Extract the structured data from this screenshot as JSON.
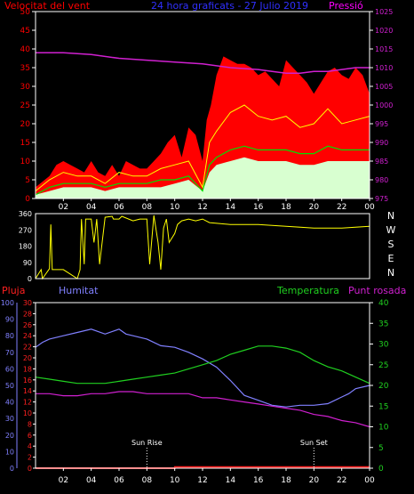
{
  "colors": {
    "background": "#000000",
    "frame": "#ffffff",
    "wind_speed": "#ff0000",
    "wind_avg": "#00e000",
    "wind_gust_fill": "#d8ffd0",
    "pressure": "#d020d0",
    "wind_dir": "#ffff00",
    "rain": "#ff2020",
    "humidity": "#8080ff",
    "temperature": "#20d020",
    "dew_point": "#d020d0",
    "tick_text": "#ffffff",
    "marker_text": "#ffffff"
  },
  "chart_data": [
    {
      "id": "wind",
      "type": "line",
      "title": "24 hora graficats - 27 Julio 2019",
      "ylabel_left": "Velocitat del vent",
      "ylabel_right": "Pressió",
      "ylim_left": [
        0,
        50
      ],
      "ylim_right": [
        975,
        1025
      ],
      "yticks_left": [
        "0",
        "5",
        "10",
        "15",
        "20",
        "25",
        "30",
        "35",
        "40",
        "45",
        "50"
      ],
      "yticks_right": [
        "975",
        "980",
        "985",
        "990",
        "995",
        "1000",
        "1005",
        "1010",
        "1015",
        "1020",
        "1025"
      ],
      "xticks": [
        "02",
        "04",
        "06",
        "08",
        "10",
        "12",
        "14",
        "16",
        "18",
        "20",
        "22",
        "00"
      ],
      "xlim_hours": [
        0,
        24
      ],
      "series": [
        {
          "role": "gust_envelope",
          "color": "#ff0000",
          "x": [
            0,
            1,
            1.5,
            2,
            2.5,
            3,
            3.5,
            4,
            4.5,
            5,
            5.5,
            6,
            6.5,
            7,
            7.5,
            8,
            8.5,
            9,
            9.5,
            10,
            10.5,
            11,
            11.5,
            12,
            12.3,
            12.6,
            13,
            13.5,
            14,
            14.5,
            15,
            15.5,
            16,
            16.5,
            17,
            17.5,
            18,
            18.5,
            19,
            19.5,
            20,
            20.5,
            21,
            21.5,
            22,
            22.5,
            23,
            23.5,
            24
          ],
          "values": [
            3,
            6,
            9,
            10,
            9,
            8,
            7,
            10,
            7,
            6,
            9,
            6,
            10,
            9,
            8,
            8,
            10,
            12,
            15,
            17,
            11,
            19,
            17,
            10,
            21,
            25,
            33,
            38,
            37,
            36,
            36,
            35,
            33,
            34,
            32,
            30,
            37,
            35,
            33,
            31,
            28,
            31,
            34,
            35,
            33,
            32,
            35,
            33,
            28
          ]
        },
        {
          "role": "wind_speed",
          "color": "#ff0000",
          "x": [
            0,
            1,
            2,
            3,
            4,
            5,
            6,
            7,
            8,
            9,
            10,
            11,
            12,
            12.5,
            13,
            14,
            15,
            16,
            17,
            18,
            19,
            20,
            21,
            22,
            23,
            24
          ],
          "values": [
            2,
            5,
            7,
            6,
            6,
            4,
            7,
            6,
            6,
            8,
            9,
            10,
            3,
            15,
            18,
            23,
            25,
            22,
            21,
            22,
            19,
            20,
            24,
            20,
            21,
            22
          ]
        },
        {
          "role": "wind_avg",
          "name": "",
          "color": "#00e000",
          "x": [
            0,
            1,
            2,
            3,
            4,
            5,
            6,
            7,
            8,
            9,
            10,
            11,
            12,
            12.5,
            13,
            14,
            15,
            16,
            17,
            18,
            19,
            20,
            21,
            22,
            23,
            24
          ],
          "values": [
            1,
            3,
            4,
            4,
            4,
            3,
            4,
            4,
            4,
            5,
            5,
            6,
            2,
            9,
            11,
            13,
            14,
            13,
            13,
            13,
            12,
            12,
            14,
            13,
            13,
            13
          ]
        },
        {
          "role": "gust_fill",
          "color": "#d8ffd0",
          "x": [
            0,
            1,
            2,
            3,
            4,
            5,
            6,
            7,
            8,
            9,
            10,
            11,
            12,
            12.5,
            13,
            14,
            15,
            16,
            17,
            18,
            19,
            20,
            21,
            22,
            23,
            24
          ],
          "values": [
            1,
            2,
            3,
            3,
            3,
            2,
            3,
            3,
            3,
            3,
            4,
            5,
            2,
            7,
            9,
            10,
            11,
            10,
            10,
            10,
            9,
            9,
            10,
            10,
            10,
            10
          ]
        },
        {
          "role": "pressure",
          "axis": "right",
          "color": "#d020d0",
          "x": [
            0,
            2,
            4,
            6,
            8,
            10,
            12,
            14,
            16,
            17,
            18,
            19,
            20,
            21,
            22,
            23,
            24
          ],
          "values": [
            1014,
            1014,
            1013.5,
            1012.5,
            1012,
            1011.5,
            1011,
            1010,
            1009.5,
            1009,
            1008.5,
            1008.5,
            1009,
            1009,
            1009.5,
            1010,
            1010
          ]
        }
      ]
    },
    {
      "id": "direction",
      "type": "line",
      "ylim": [
        0,
        360
      ],
      "yticks": [
        "0",
        "90",
        "180",
        "270",
        "360"
      ],
      "direction_labels": [
        "N",
        "W",
        "S",
        "E",
        "N"
      ],
      "series": [
        {
          "role": "wind_dir",
          "color": "#ffff00",
          "x": [
            0,
            0.4,
            0.5,
            1,
            1.1,
            1.2,
            2,
            3,
            3.2,
            3.3,
            3.5,
            3.6,
            4,
            4.2,
            4.4,
            4.6,
            5,
            5.5,
            5.6,
            6,
            6.2,
            7,
            7.5,
            8,
            8.2,
            8.5,
            8.8,
            9,
            9.2,
            9.4,
            9.6,
            10,
            10.2,
            10.5,
            11,
            11.5,
            12,
            12.5,
            14,
            16,
            18,
            20,
            22,
            24
          ],
          "values": [
            0,
            50,
            0,
            55,
            300,
            50,
            50,
            0,
            50,
            330,
            80,
            330,
            330,
            200,
            330,
            80,
            340,
            345,
            330,
            330,
            345,
            320,
            330,
            330,
            80,
            350,
            200,
            50,
            280,
            330,
            200,
            250,
            300,
            320,
            330,
            320,
            330,
            310,
            300,
            300,
            290,
            280,
            280,
            290
          ]
        }
      ]
    },
    {
      "id": "climate",
      "type": "line",
      "ylabel_rain": "Pluja",
      "ylabel_humidity": "Humitat",
      "ylabel_temperature": "Temperatura",
      "ylabel_dew_point": "Punt rosada",
      "ylim_humidity": [
        0,
        100
      ],
      "ylim_rain": [
        0,
        30
      ],
      "ylim_temperature": [
        0,
        40
      ],
      "yticks_humidity": [
        "0",
        "10",
        "20",
        "30",
        "40",
        "50",
        "60",
        "70",
        "80",
        "90",
        "100"
      ],
      "yticks_rain": [
        "0",
        "2",
        "4",
        "6",
        "8",
        "10",
        "12",
        "14",
        "16",
        "18",
        "20",
        "22",
        "24",
        "26",
        "28",
        "30"
      ],
      "yticks_temperature": [
        "0",
        "5",
        "10",
        "15",
        "20",
        "25",
        "30",
        "35",
        "40"
      ],
      "xticks": [
        "02",
        "04",
        "06",
        "08",
        "10",
        "12",
        "14",
        "16",
        "18",
        "20",
        "22",
        "00"
      ],
      "markers": [
        {
          "label": "Sun Rise",
          "x_hour": 8
        },
        {
          "label": "Sun Set",
          "x_hour": 20
        }
      ],
      "series": [
        {
          "role": "humidity",
          "color": "#8080ff",
          "x": [
            0,
            0.5,
            1,
            2,
            3,
            4,
            5,
            6,
            6.5,
            7,
            8,
            9,
            10,
            11,
            12,
            13,
            14,
            15,
            16,
            17,
            18,
            19,
            20,
            21,
            22,
            22.5,
            23,
            24
          ],
          "values": [
            73,
            76,
            78,
            80,
            82,
            84,
            81,
            84,
            81,
            80,
            78,
            74,
            73,
            70,
            66,
            61,
            53,
            44,
            41,
            38,
            37,
            38,
            38,
            39,
            43,
            45,
            48,
            50
          ]
        },
        {
          "role": "temperature",
          "color": "#20d020",
          "x": [
            0,
            1,
            2,
            3,
            4,
            5,
            6,
            7,
            8,
            9,
            10,
            11,
            12,
            13,
            14,
            15,
            16,
            17,
            18,
            19,
            20,
            21,
            22,
            23,
            24
          ],
          "values": [
            22,
            21.5,
            21,
            20.5,
            20.5,
            20.5,
            21,
            21.5,
            22,
            22.5,
            23,
            24,
            25,
            26,
            27.5,
            28.5,
            29.5,
            29.5,
            29,
            28,
            26,
            24.5,
            23.5,
            22,
            20.5
          ]
        },
        {
          "role": "dew_point",
          "color": "#d020d0",
          "x": [
            0,
            1,
            2,
            3,
            4,
            5,
            6,
            7,
            8,
            9,
            10,
            11,
            12,
            13,
            14,
            15,
            16,
            17,
            18,
            19,
            20,
            21,
            22,
            23,
            24
          ],
          "values": [
            18,
            18,
            17.5,
            17.5,
            18,
            18,
            18.5,
            18.5,
            18,
            18,
            18,
            18,
            17,
            17,
            16.5,
            16,
            15.5,
            15,
            14.5,
            14,
            13,
            12.5,
            11.5,
            11,
            10
          ]
        },
        {
          "role": "rain",
          "axis": "rain",
          "color": "#ff2020",
          "x": [
            0,
            10,
            10.01,
            24
          ],
          "values": [
            0,
            0,
            0.2,
            0.2
          ]
        }
      ]
    }
  ]
}
